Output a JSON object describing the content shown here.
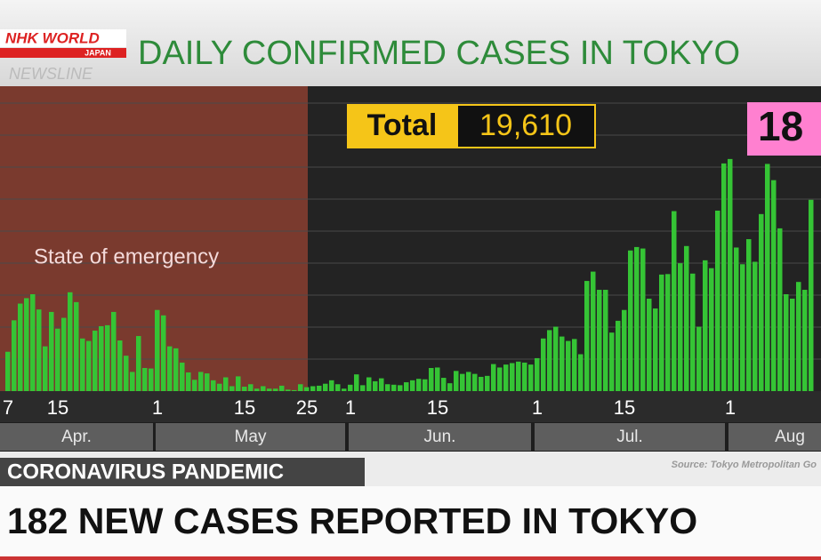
{
  "header": {
    "logo": "NHK WORLD",
    "logo_sub": "JAPAN",
    "program": "NEWSLINE"
  },
  "chart_data": {
    "type": "bar",
    "title": "DAILY CONFIRMED CASES IN TOKYO",
    "annotation": "State of emergency",
    "total_label": "Total",
    "total_value": "19,610",
    "highlight": "18",
    "color": "#35c435",
    "ylim": [
      0,
      620
    ],
    "months": [
      "Apr.",
      "May",
      "Jun.",
      "Jul.",
      "Aug"
    ],
    "categories": [
      "7",
      null,
      null,
      null,
      null,
      null,
      null,
      null,
      "15",
      null,
      null,
      null,
      null,
      null,
      null,
      null,
      null,
      null,
      null,
      null,
      null,
      null,
      null,
      null,
      "1",
      null,
      null,
      null,
      null,
      null,
      null,
      null,
      null,
      null,
      null,
      null,
      null,
      null,
      "15",
      null,
      null,
      null,
      null,
      null,
      null,
      null,
      null,
      null,
      "25",
      null,
      null,
      null,
      null,
      null,
      null,
      "1",
      null,
      null,
      null,
      null,
      null,
      null,
      null,
      null,
      null,
      null,
      null,
      null,
      null,
      "15",
      null,
      null,
      null,
      null,
      null,
      null,
      null,
      null,
      null,
      null,
      null,
      null,
      null,
      null,
      null,
      "1",
      null,
      null,
      null,
      null,
      null,
      null,
      null,
      null,
      null,
      null,
      null,
      null,
      null,
      "15",
      null,
      null,
      null,
      null,
      null,
      null,
      null,
      null,
      null,
      null,
      null,
      null,
      null,
      null,
      null,
      null,
      "1",
      null,
      null,
      null,
      null,
      null,
      null,
      null,
      null,
      null,
      null,
      null,
      null,
      null
    ],
    "values": [
      80,
      144,
      178,
      189,
      197,
      166,
      91,
      161,
      127,
      149,
      201,
      181,
      107,
      102,
      123,
      132,
      134,
      161,
      103,
      72,
      39,
      112,
      47,
      46,
      165,
      154,
      91,
      87,
      58,
      38,
      23,
      39,
      36,
      22,
      15,
      28,
      10,
      30,
      9,
      14,
      5,
      10,
      5,
      5,
      11,
      3,
      2,
      14,
      8,
      10,
      11,
      15,
      22,
      14,
      5,
      13,
      34,
      12,
      28,
      20,
      26,
      14,
      13,
      12,
      18,
      22,
      25,
      24,
      47,
      48,
      27,
      16,
      41,
      35,
      39,
      35,
      29,
      31,
      55,
      48,
      54,
      57,
      60,
      58,
      54,
      67,
      107,
      124,
      131,
      111,
      102,
      106,
      75,
      224,
      243,
      206,
      206,
      119,
      143,
      165,
      286,
      293,
      290,
      188,
      168,
      237,
      238,
      366,
      260,
      295,
      239,
      131,
      266,
      250,
      367,
      463,
      472,
      292,
      258,
      309,
      263,
      360,
      462,
      429,
      331,
      197,
      188,
      222,
      206,
      389
    ],
    "source": "Source: Tokyo Metropolitan Go"
  },
  "ticker": "CORONAVIRUS PANDEMIC",
  "headline": "182 NEW CASES REPORTED IN TOKYO"
}
